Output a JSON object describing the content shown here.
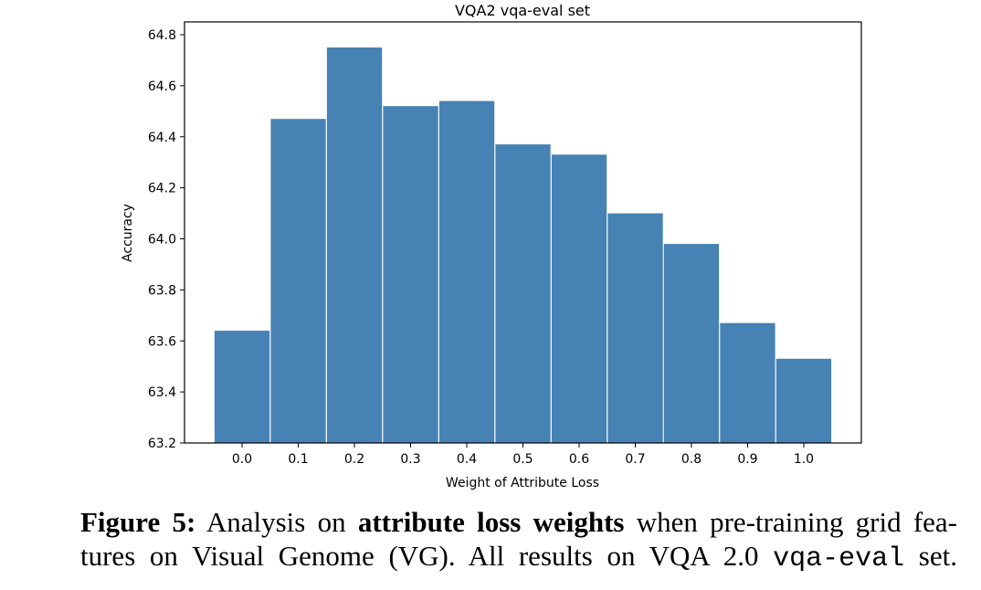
{
  "chart_data": {
    "type": "bar",
    "title": "VQA2 vqa-eval set",
    "xlabel": "Weight of Attribute Loss",
    "ylabel": "Accuracy",
    "categories": [
      "0.0",
      "0.1",
      "0.2",
      "0.3",
      "0.4",
      "0.5",
      "0.6",
      "0.7",
      "0.8",
      "0.9",
      "1.0"
    ],
    "x": [
      0.0,
      0.1,
      0.2,
      0.3,
      0.4,
      0.5,
      0.6,
      0.7,
      0.8,
      0.9,
      1.0
    ],
    "values": [
      63.64,
      64.47,
      64.75,
      64.52,
      64.54,
      64.37,
      64.33,
      64.1,
      63.98,
      63.67,
      63.53
    ],
    "ylim": [
      63.2,
      64.85
    ],
    "xlim": [
      -0.1025,
      1.1025
    ],
    "yticks": [
      "63.2",
      "63.4",
      "63.6",
      "63.8",
      "64.0",
      "64.2",
      "64.4",
      "64.6",
      "64.8"
    ],
    "ytick_values": [
      63.2,
      63.4,
      63.6,
      63.8,
      64.0,
      64.2,
      64.4,
      64.6,
      64.8
    ],
    "bar_color": "#4682b4",
    "grid": false,
    "legend": "none"
  },
  "caption": {
    "label": "Figure 5:",
    "part1": " Analysis on ",
    "bold1": "attribute loss weights",
    "part2": " when pre-training grid fea-",
    "part3": "tures on Visual Genome (VG). All results on VQA 2.0 ",
    "mono": "vqa-eval",
    "part4": " set."
  }
}
